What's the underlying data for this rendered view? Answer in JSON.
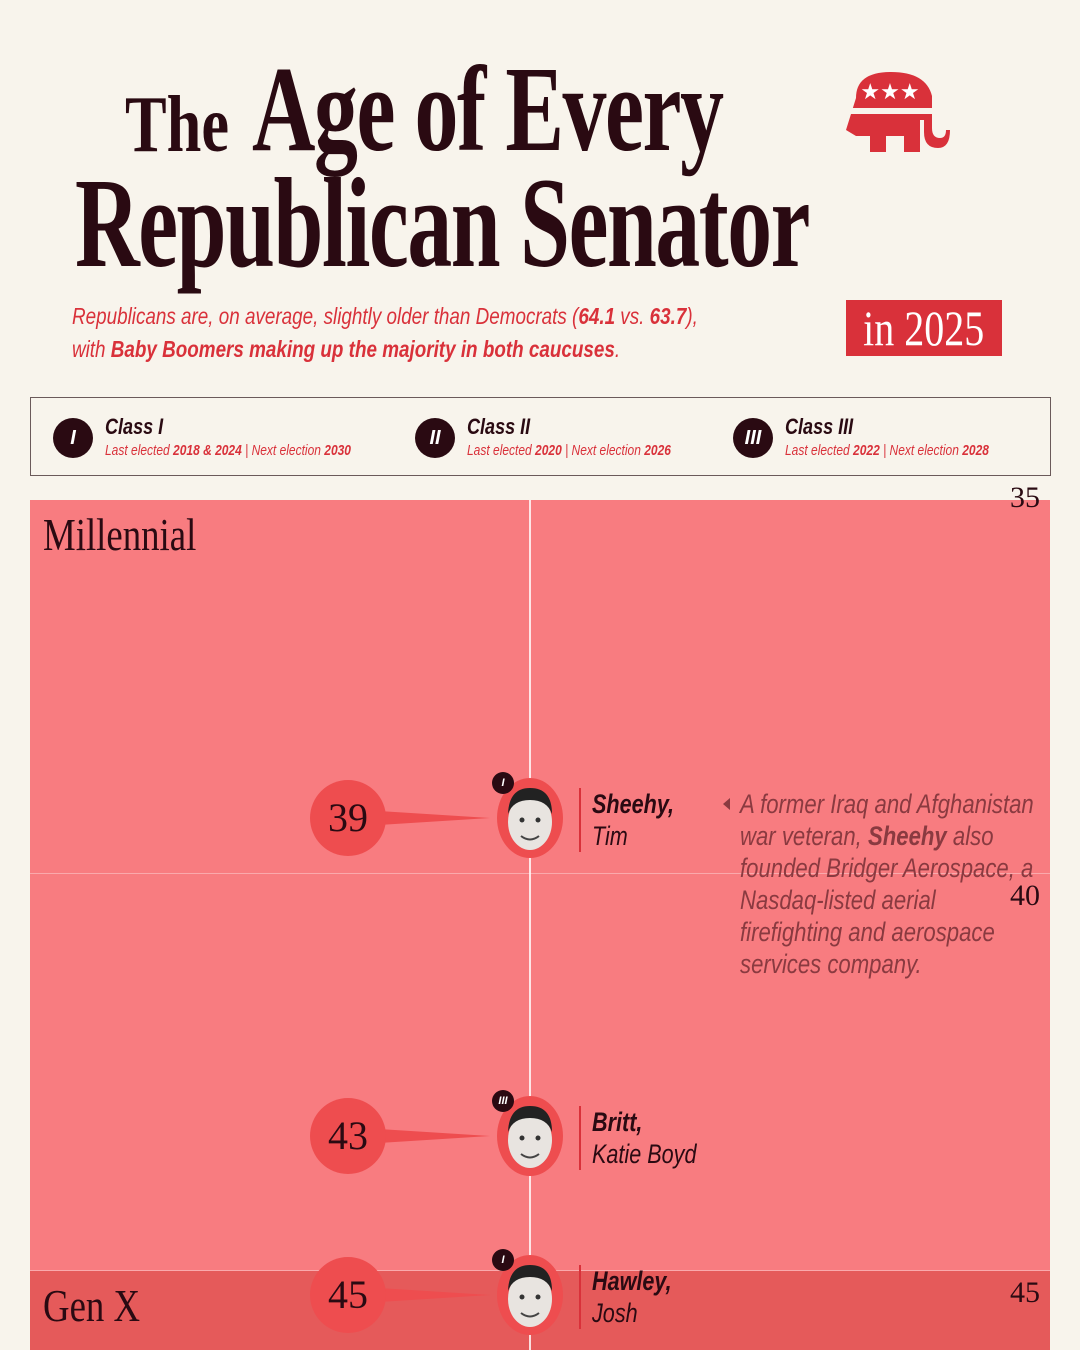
{
  "header": {
    "title_the": "The",
    "title_age": "Age of Every",
    "title_rep": "Republican Senator",
    "subtitle_parts": [
      "Republicans are, on average, slightly older than Democrats (",
      "64.1",
      " vs. ",
      "63.7",
      "),",
      "with ",
      "Baby Boomers making up the majority in both caucuses",
      "."
    ],
    "year_badge": "in 2025",
    "logo_icon": "republican-elephant-icon"
  },
  "legend": [
    {
      "numeral": "I",
      "name": "Class I",
      "last_label": "Last elected ",
      "last": "2018 & 2024",
      "sep": " | ",
      "next_label": "Next election ",
      "next": "2030"
    },
    {
      "numeral": "II",
      "name": "Class II",
      "last_label": "Last elected ",
      "last": "2020",
      "sep": " | ",
      "next_label": "Next election ",
      "next": "2026"
    },
    {
      "numeral": "III",
      "name": "Class III",
      "last_label": "Last elected ",
      "last": "2022",
      "sep": " | ",
      "next_label": "Next election ",
      "next": "2028"
    }
  ],
  "colors": {
    "background": "#f8f4ec",
    "millennial": "#f87c80",
    "genx": "#e55a5a",
    "accent": "#d9313a",
    "dark": "#2a0a12"
  },
  "chart_data": {
    "type": "scatter",
    "yaxis": {
      "ticks": [
        35,
        40,
        45
      ],
      "direction": "down"
    },
    "generations": [
      {
        "name": "Millennial",
        "start_age": 35
      },
      {
        "name": "Gen X",
        "start_age": 44.7
      }
    ],
    "senators": [
      {
        "last": "Sheehy,",
        "first": "Tim",
        "age": 39,
        "class": "I"
      },
      {
        "last": "Britt,",
        "first": "Katie Boyd",
        "age": 43,
        "class": "III"
      },
      {
        "last": "Hawley,",
        "first": "Josh",
        "age": 45,
        "class": "I"
      }
    ],
    "annotation": {
      "parts": [
        "A former Iraq and Afghanistan war veteran, ",
        "Sheehy",
        " also founded Bridger Aerospace, a Nasdaq-listed aerial firefighting and aerospace services company."
      ]
    }
  }
}
